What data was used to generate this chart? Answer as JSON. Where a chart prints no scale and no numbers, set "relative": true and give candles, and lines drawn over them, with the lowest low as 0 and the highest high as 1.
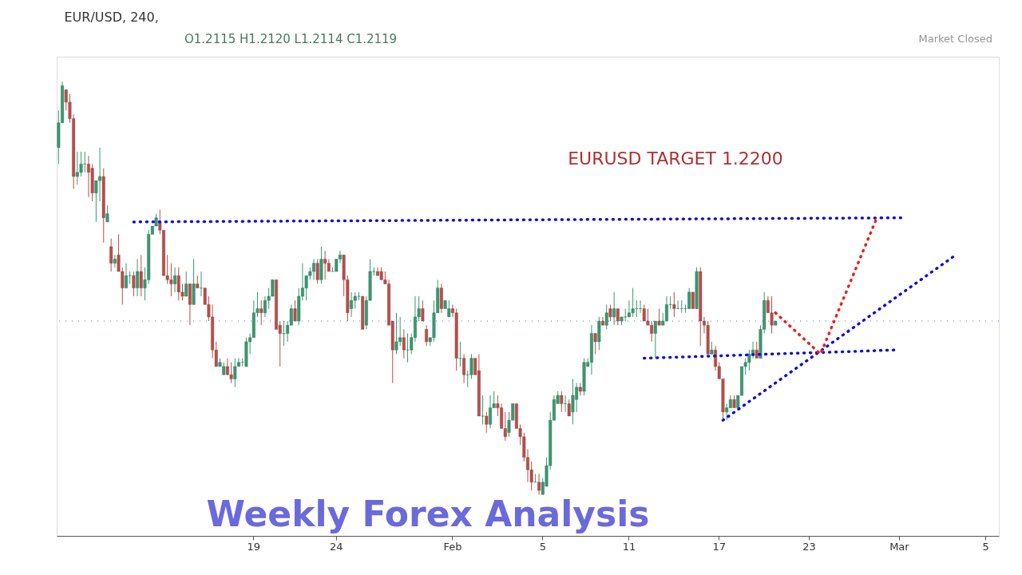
{
  "chart_data": {
    "type": "candlestick",
    "title": "EUR/USD, 240,",
    "relative": true,
    "line_style": "dotted",
    "categories": [
      null,
      null,
      null,
      null,
      null,
      null,
      null,
      null,
      null,
      null,
      null,
      null,
      null,
      null,
      null,
      null,
      null,
      null,
      null,
      null,
      null,
      null,
      null,
      null,
      null,
      null,
      null,
      null,
      null,
      null,
      null,
      null,
      null,
      null,
      null,
      null,
      null,
      null,
      null,
      null,
      null,
      null,
      null,
      null,
      null,
      null,
      null,
      null,
      null,
      null,
      null,
      null,
      "19",
      null,
      null,
      null,
      null,
      null,
      null,
      null,
      null,
      null,
      null,
      null,
      null,
      null,
      null,
      null,
      null,
      null,
      null,
      null,
      null,
      null,
      "24",
      null,
      null,
      null,
      null,
      null,
      null,
      null,
      null,
      null,
      null,
      null,
      null,
      null,
      null,
      null,
      null,
      null,
      null,
      null,
      null,
      null,
      null,
      null,
      null,
      null,
      null,
      null,
      null,
      null,
      null,
      "Feb",
      null,
      null,
      null,
      null,
      null,
      null,
      null,
      null,
      null,
      null,
      null,
      null,
      null,
      null,
      null,
      null,
      null,
      null,
      null,
      null,
      null,
      null,
      null,
      "5",
      null,
      null,
      null,
      null,
      null,
      null,
      null,
      null,
      null,
      null,
      null,
      null,
      null,
      null,
      null,
      null,
      null,
      null,
      null,
      null,
      null,
      null,
      "11",
      null,
      null,
      null,
      null,
      null,
      null,
      null,
      null,
      null,
      null,
      null,
      null,
      null,
      null,
      null,
      null,
      null,
      null,
      null,
      null,
      null,
      null,
      null,
      "17",
      null,
      null,
      null,
      null,
      null,
      null,
      null,
      null,
      null,
      null,
      null,
      null,
      null,
      null,
      null,
      null,
      null,
      null,
      null,
      null,
      null,
      null,
      null,
      "23",
      null,
      null,
      null,
      null,
      null,
      null,
      null,
      null,
      null,
      null,
      null,
      null,
      null,
      null,
      null,
      null,
      null,
      null,
      null,
      null,
      null,
      null,
      null,
      "Mar",
      null,
      null,
      null,
      null,
      null,
      null,
      null,
      null,
      null,
      null,
      null,
      null,
      null,
      null,
      null,
      null,
      null,
      null,
      null,
      null,
      null,
      null,
      "5",
      null,
      null,
      null
    ],
    "ohlc": [
      [
        0.84,
        0.93,
        0.8,
        0.9
      ],
      [
        0.9,
        1.0,
        0.9,
        0.99
      ],
      [
        0.98,
        0.98,
        0.93,
        0.95
      ],
      [
        0.95,
        0.97,
        0.9,
        0.91
      ],
      [
        0.91,
        0.92,
        0.74,
        0.77
      ],
      [
        0.77,
        0.83,
        0.75,
        0.78
      ],
      [
        0.78,
        0.83,
        0.77,
        0.8
      ],
      [
        0.8,
        0.83,
        0.78,
        0.8
      ],
      [
        0.8,
        0.82,
        0.72,
        0.78
      ],
      [
        0.79,
        0.8,
        0.71,
        0.73
      ],
      [
        0.73,
        0.76,
        0.66,
        0.76
      ],
      [
        0.76,
        0.84,
        0.71,
        0.77
      ],
      [
        0.77,
        0.79,
        0.61,
        0.67
      ],
      [
        0.66,
        0.7,
        0.66,
        0.68
      ],
      [
        0.6,
        0.62,
        0.54,
        0.56
      ],
      [
        0.56,
        0.58,
        0.55,
        0.57
      ],
      [
        0.58,
        0.63,
        0.54,
        0.54
      ],
      [
        0.54,
        0.55,
        0.46,
        0.5
      ],
      [
        0.5,
        0.56,
        0.5,
        0.53
      ],
      [
        0.53,
        0.54,
        0.51,
        0.53
      ],
      [
        0.53,
        0.54,
        0.48,
        0.5
      ],
      [
        0.5,
        0.57,
        0.48,
        0.54
      ],
      [
        0.54,
        0.58,
        0.48,
        0.5
      ],
      [
        0.5,
        0.55,
        0.47,
        0.52
      ],
      [
        0.52,
        0.64,
        0.51,
        0.63
      ],
      [
        0.63,
        0.65,
        0.63,
        0.65
      ],
      [
        0.65,
        0.68,
        0.65,
        0.67
      ],
      [
        0.66,
        0.69,
        0.63,
        0.64
      ],
      [
        0.64,
        0.64,
        0.53,
        0.53
      ],
      [
        0.53,
        0.58,
        0.51,
        0.52
      ],
      [
        0.52,
        0.56,
        0.48,
        0.51
      ],
      [
        0.51,
        0.55,
        0.49,
        0.53
      ],
      [
        0.53,
        0.55,
        0.47,
        0.49
      ],
      [
        0.49,
        0.51,
        0.47,
        0.48
      ],
      [
        0.48,
        0.54,
        0.48,
        0.51
      ],
      [
        0.51,
        0.51,
        0.41,
        0.46
      ],
      [
        0.46,
        0.57,
        0.46,
        0.51
      ],
      [
        0.51,
        0.53,
        0.5,
        0.5
      ],
      [
        0.5,
        0.54,
        0.48,
        0.5
      ],
      [
        0.5,
        0.5,
        0.46,
        0.46
      ],
      [
        0.46,
        0.48,
        0.42,
        0.43
      ],
      [
        0.43,
        0.46,
        0.33,
        0.35
      ],
      [
        0.35,
        0.37,
        0.31,
        0.31
      ],
      [
        0.31,
        0.33,
        0.31,
        0.32
      ],
      [
        0.29,
        0.32,
        0.29,
        0.31
      ],
      [
        0.31,
        0.33,
        0.29,
        0.29
      ],
      [
        0.29,
        0.32,
        0.27,
        0.28
      ],
      [
        0.28,
        0.33,
        0.26,
        0.31
      ],
      [
        0.31,
        0.33,
        0.31,
        0.32
      ],
      [
        0.32,
        0.33,
        0.31,
        0.32
      ],
      [
        0.31,
        0.38,
        0.31,
        0.37
      ],
      [
        0.37,
        0.39,
        0.34,
        0.38
      ],
      [
        0.38,
        0.47,
        0.38,
        0.44
      ],
      [
        0.44,
        0.49,
        0.43,
        0.45
      ],
      [
        0.45,
        0.47,
        0.41,
        0.44
      ],
      [
        0.44,
        0.48,
        0.43,
        0.47
      ],
      [
        0.47,
        0.5,
        0.45,
        0.48
      ],
      [
        0.48,
        0.52,
        0.48,
        0.52
      ],
      [
        0.52,
        0.52,
        0.4,
        0.4
      ],
      [
        0.41,
        0.42,
        0.31,
        0.39
      ],
      [
        0.39,
        0.42,
        0.36,
        0.39
      ],
      [
        0.39,
        0.42,
        0.37,
        0.41
      ],
      [
        0.41,
        0.46,
        0.41,
        0.45
      ],
      [
        0.45,
        0.47,
        0.42,
        0.42
      ],
      [
        0.42,
        0.5,
        0.41,
        0.48
      ],
      [
        0.48,
        0.56,
        0.47,
        0.5
      ],
      [
        0.5,
        0.53,
        0.47,
        0.53
      ],
      [
        0.53,
        0.55,
        0.52,
        0.54
      ],
      [
        0.54,
        0.57,
        0.52,
        0.56
      ],
      [
        0.56,
        0.57,
        0.51,
        0.52
      ],
      [
        0.52,
        0.6,
        0.51,
        0.57
      ],
      [
        0.57,
        0.59,
        0.52,
        0.56
      ],
      [
        0.56,
        0.57,
        0.54,
        0.54
      ],
      [
        0.54,
        0.55,
        0.54,
        0.54
      ],
      [
        0.54,
        0.57,
        0.54,
        0.57
      ],
      [
        0.57,
        0.59,
        0.56,
        0.58
      ],
      [
        0.58,
        0.58,
        0.48,
        0.52
      ],
      [
        0.52,
        0.53,
        0.42,
        0.44
      ],
      [
        0.45,
        0.49,
        0.43,
        0.47
      ],
      [
        0.47,
        0.49,
        0.45,
        0.48
      ],
      [
        0.48,
        0.49,
        0.47,
        0.48
      ],
      [
        0.48,
        0.48,
        0.4,
        0.4
      ],
      [
        0.41,
        0.48,
        0.4,
        0.47
      ],
      [
        0.47,
        0.57,
        0.47,
        0.54
      ],
      [
        0.54,
        0.55,
        0.53,
        0.54
      ],
      [
        0.54,
        0.55,
        0.53,
        0.53
      ],
      [
        0.54,
        0.55,
        0.52,
        0.52
      ],
      [
        0.52,
        0.54,
        0.51,
        0.51
      ],
      [
        0.51,
        0.52,
        0.41,
        0.41
      ],
      [
        0.42,
        0.42,
        0.27,
        0.35
      ],
      [
        0.35,
        0.44,
        0.34,
        0.37
      ],
      [
        0.37,
        0.43,
        0.36,
        0.38
      ],
      [
        0.38,
        0.4,
        0.33,
        0.35
      ],
      [
        0.35,
        0.39,
        0.32,
        0.35
      ],
      [
        0.35,
        0.39,
        0.34,
        0.38
      ],
      [
        0.38,
        0.48,
        0.37,
        0.43
      ],
      [
        0.43,
        0.48,
        0.42,
        0.45
      ],
      [
        0.45,
        0.47,
        0.42,
        0.42
      ],
      [
        0.4,
        0.41,
        0.36,
        0.37
      ],
      [
        0.37,
        0.38,
        0.36,
        0.38
      ],
      [
        0.38,
        0.47,
        0.37,
        0.44
      ],
      [
        0.44,
        0.52,
        0.44,
        0.5
      ],
      [
        0.5,
        0.51,
        0.44,
        0.45
      ],
      [
        0.45,
        0.47,
        0.45,
        0.47
      ],
      [
        0.43,
        0.47,
        0.43,
        0.45
      ],
      [
        0.45,
        0.46,
        0.43,
        0.44
      ],
      [
        0.44,
        0.45,
        0.3,
        0.33
      ],
      [
        0.33,
        0.37,
        0.31,
        0.33
      ],
      [
        0.33,
        0.34,
        0.27,
        0.29
      ],
      [
        0.29,
        0.3,
        0.26,
        0.29
      ],
      [
        0.29,
        0.34,
        0.28,
        0.33
      ],
      [
        0.33,
        0.33,
        0.29,
        0.29
      ],
      [
        0.3,
        0.34,
        0.19,
        0.19
      ],
      [
        0.19,
        0.24,
        0.17,
        0.19
      ],
      [
        0.19,
        0.2,
        0.15,
        0.17
      ],
      [
        0.17,
        0.24,
        0.16,
        0.21
      ],
      [
        0.21,
        0.25,
        0.21,
        0.22
      ],
      [
        0.22,
        0.24,
        0.19,
        0.21
      ],
      [
        0.21,
        0.22,
        0.16,
        0.16
      ],
      [
        0.16,
        0.2,
        0.13,
        0.14
      ],
      [
        0.15,
        0.2,
        0.14,
        0.18
      ],
      [
        0.18,
        0.22,
        0.18,
        0.22
      ],
      [
        0.22,
        0.22,
        0.16,
        0.16
      ],
      [
        0.16,
        0.17,
        0.12,
        0.14
      ],
      [
        0.14,
        0.15,
        0.08,
        0.09
      ],
      [
        0.09,
        0.11,
        0.03,
        0.06
      ],
      [
        0.06,
        0.08,
        0.01,
        0.03
      ],
      [
        0.03,
        0.05,
        0.03,
        0.03
      ],
      [
        0.03,
        0.05,
        0,
        0.01
      ],
      [
        0,
        0.04,
        0,
        0.03
      ],
      [
        0.02,
        0.09,
        0.02,
        0.07
      ],
      [
        0.07,
        0.2,
        0.06,
        0.18
      ],
      [
        0.18,
        0.24,
        0.18,
        0.23
      ],
      [
        0.22,
        0.25,
        0.22,
        0.24
      ],
      [
        0.24,
        0.25,
        0.2,
        0.22
      ],
      [
        0.22,
        0.24,
        0.2,
        0.22
      ],
      [
        0.22,
        0.23,
        0.19,
        0.19
      ],
      [
        0.2,
        0.28,
        0.17,
        0.24
      ],
      [
        0.23,
        0.27,
        0.2,
        0.26
      ],
      [
        0.26,
        0.27,
        0.24,
        0.25
      ],
      [
        0.25,
        0.33,
        0.24,
        0.32
      ],
      [
        0.31,
        0.33,
        0.31,
        0.32
      ],
      [
        0.32,
        0.41,
        0.29,
        0.39
      ],
      [
        0.39,
        0.39,
        0.34,
        0.37
      ],
      [
        0.37,
        0.43,
        0.35,
        0.42
      ],
      [
        0.42,
        0.43,
        0.41,
        0.41
      ],
      [
        0.41,
        0.46,
        0.4,
        0.44
      ],
      [
        0.45,
        0.46,
        0.42,
        0.43
      ],
      [
        0.43,
        0.49,
        0.41,
        0.45
      ],
      [
        0.45,
        0.45,
        0.41,
        0.42
      ],
      [
        0.42,
        0.43,
        0.41,
        0.43
      ],
      [
        0.43,
        0.45,
        0.42,
        0.43
      ],
      [
        0.43,
        0.47,
        0.43,
        0.44
      ],
      [
        0.44,
        0.5,
        0.43,
        0.45
      ],
      [
        0.45,
        0.47,
        0.43,
        0.45
      ],
      [
        0.45,
        0.47,
        0.44,
        0.45
      ],
      [
        0.45,
        0.46,
        0.42,
        0.42
      ],
      [
        0.42,
        0.45,
        0.41,
        0.41
      ],
      [
        0.41,
        0.42,
        0.37,
        0.39
      ],
      [
        0.39,
        0.42,
        0.33,
        0.42
      ],
      [
        0.42,
        0.45,
        0.41,
        0.41
      ],
      [
        0.41,
        0.44,
        0.41,
        0.42
      ],
      [
        0.42,
        0.48,
        0.42,
        0.46
      ],
      [
        0.46,
        0.48,
        0.45,
        0.46
      ],
      [
        0.46,
        0.49,
        0.43,
        0.45
      ],
      [
        0.45,
        0.47,
        0.45,
        0.45
      ],
      [
        0.45,
        0.47,
        0.44,
        0.45
      ],
      [
        0.45,
        0.46,
        0.44,
        0.45
      ],
      [
        0.45,
        0.5,
        0.45,
        0.49
      ],
      [
        0.49,
        0.49,
        0.45,
        0.45
      ],
      [
        0.45,
        0.55,
        0.45,
        0.54
      ],
      [
        0.54,
        0.55,
        0.36,
        0.42
      ],
      [
        0.42,
        0.43,
        0.39,
        0.41
      ],
      [
        0.41,
        0.42,
        0.34,
        0.34
      ],
      [
        0.34,
        0.37,
        0.34,
        0.35
      ],
      [
        0.35,
        0.36,
        0.3,
        0.31
      ],
      [
        0.31,
        0.32,
        0.28,
        0.28
      ],
      [
        0.28,
        0.28,
        0.18,
        0.2
      ],
      [
        0.2,
        0.22,
        0.18,
        0.21
      ],
      [
        0.21,
        0.24,
        0.21,
        0.23
      ],
      [
        0.23,
        0.24,
        0.21,
        0.21
      ],
      [
        0.21,
        0.24,
        0.21,
        0.24
      ],
      [
        0.24,
        0.31,
        0.24,
        0.31
      ],
      [
        0.31,
        0.33,
        0.29,
        0.32
      ],
      [
        0.32,
        0.35,
        0.3,
        0.34
      ],
      [
        0.34,
        0.37,
        0.33,
        0.35
      ],
      [
        0.35,
        0.37,
        0.33,
        0.33
      ],
      [
        0.33,
        0.41,
        0.33,
        0.4
      ],
      [
        0.4,
        0.49,
        0.39,
        0.47
      ],
      [
        0.47,
        0.48,
        0.44,
        0.44
      ],
      [
        0.44,
        0.48,
        0.39,
        0.41
      ],
      [
        0.41,
        0.42,
        0.41,
        0.42
      ],
      null,
      null,
      null,
      null,
      null,
      null,
      null,
      null,
      null,
      null,
      null,
      null,
      null,
      null,
      null,
      null,
      null,
      null,
      null,
      null,
      null,
      null,
      null,
      null,
      null,
      null,
      null,
      null,
      null,
      null,
      null,
      null,
      null,
      null,
      null,
      null,
      null,
      null,
      null,
      null,
      null,
      null,
      null,
      null,
      null,
      null,
      null,
      null,
      null,
      null,
      null,
      null,
      null,
      null,
      null,
      null,
      null,
      null,
      null
    ],
    "series": [
      {
        "type": "line",
        "color": "#1010d8",
        "values": [
          null,
          null,
          null,
          null,
          null,
          null,
          null,
          null,
          null,
          null,
          null,
          null,
          null,
          null,
          null,
          null,
          null,
          null,
          null,
          null,
          0.66,
          null,
          null,
          null,
          null,
          null,
          null,
          null,
          null,
          null,
          null,
          null,
          null,
          null,
          null,
          null,
          null,
          null,
          null,
          null,
          null,
          null,
          null,
          null,
          null,
          null,
          null,
          null,
          null,
          null,
          null,
          null,
          null,
          null,
          null,
          null,
          null,
          null,
          null,
          null,
          null,
          null,
          null,
          null,
          null,
          null,
          null,
          null,
          null,
          null,
          null,
          null,
          null,
          null,
          null,
          null,
          null,
          null,
          null,
          null,
          null,
          null,
          null,
          null,
          null,
          null,
          null,
          null,
          null,
          null,
          null,
          null,
          null,
          null,
          null,
          null,
          null,
          null,
          null,
          null,
          null,
          null,
          null,
          null,
          null,
          null,
          null,
          null,
          null,
          null,
          null,
          null,
          null,
          null,
          null,
          null,
          null,
          null,
          null,
          null,
          null,
          null,
          null,
          null,
          null,
          null,
          null,
          null,
          null,
          null,
          null,
          null,
          null,
          null,
          null,
          null,
          null,
          null,
          null,
          null,
          null,
          null,
          null,
          null,
          null,
          null,
          null,
          null,
          null,
          null,
          null,
          null,
          null,
          null,
          null,
          null,
          null,
          null,
          null,
          null,
          null,
          null,
          null,
          null,
          null,
          null,
          null,
          null,
          null,
          null,
          null,
          null,
          null,
          null,
          null,
          null,
          null,
          null,
          null,
          null,
          null,
          null,
          null,
          null,
          null,
          null,
          null,
          null,
          null,
          null,
          null,
          null,
          null,
          null,
          null,
          null,
          null,
          null,
          null,
          null,
          null,
          null,
          null,
          null,
          null,
          null,
          null,
          null,
          null,
          null,
          null,
          null,
          null,
          null,
          null,
          null,
          null,
          null,
          null,
          null,
          null,
          null,
          null,
          null,
          null,
          0.67,
          null,
          null,
          null,
          null,
          null,
          null,
          null,
          null,
          null,
          null,
          null,
          null,
          null,
          null,
          null,
          null,
          null,
          null,
          null,
          null,
          null,
          null,
          null,
          null,
          null
        ]
      },
      {
        "type": "line",
        "color": "#1010d8",
        "values": [
          null,
          null,
          null,
          null,
          null,
          null,
          null,
          null,
          null,
          null,
          null,
          null,
          null,
          null,
          null,
          null,
          null,
          null,
          null,
          null,
          null,
          null,
          null,
          null,
          null,
          null,
          null,
          null,
          null,
          null,
          null,
          null,
          null,
          null,
          null,
          null,
          null,
          null,
          null,
          null,
          null,
          null,
          null,
          null,
          null,
          null,
          null,
          null,
          null,
          null,
          null,
          null,
          null,
          null,
          null,
          null,
          null,
          null,
          null,
          null,
          null,
          null,
          null,
          null,
          null,
          null,
          null,
          null,
          null,
          null,
          null,
          null,
          null,
          null,
          null,
          null,
          null,
          null,
          null,
          null,
          null,
          null,
          null,
          null,
          null,
          null,
          null,
          null,
          null,
          null,
          null,
          null,
          null,
          null,
          null,
          null,
          null,
          null,
          null,
          null,
          null,
          null,
          null,
          null,
          null,
          null,
          null,
          null,
          null,
          null,
          null,
          null,
          null,
          null,
          null,
          null,
          null,
          null,
          null,
          null,
          null,
          null,
          null,
          null,
          null,
          null,
          null,
          null,
          null,
          null,
          null,
          null,
          null,
          null,
          null,
          null,
          null,
          null,
          null,
          null,
          null,
          null,
          null,
          null,
          null,
          null,
          null,
          null,
          null,
          null,
          null,
          null,
          null,
          null,
          null,
          null,
          0.33,
          null,
          null,
          null,
          null,
          null,
          null,
          null,
          null,
          null,
          null,
          null,
          null,
          null,
          null,
          null,
          null,
          null,
          null,
          null,
          null,
          null,
          null,
          null,
          null,
          null,
          null,
          null,
          null,
          null,
          null,
          null,
          null,
          null,
          null,
          null,
          null,
          null,
          null,
          null,
          null,
          null,
          null,
          null,
          null,
          null,
          null,
          null,
          null,
          null,
          null,
          null,
          null,
          null,
          null,
          null,
          null,
          null,
          null,
          null,
          null,
          null,
          null,
          null,
          null,
          null,
          null,
          0.35,
          null,
          null,
          null,
          null,
          null,
          null,
          null,
          null,
          null,
          null,
          null,
          null,
          null,
          null,
          null,
          null,
          null,
          null,
          null,
          null,
          null,
          null,
          null,
          null,
          null,
          null,
          null
        ]
      },
      {
        "type": "line",
        "color": "#1010d8",
        "values": [
          null,
          null,
          null,
          null,
          null,
          null,
          null,
          null,
          null,
          null,
          null,
          null,
          null,
          null,
          null,
          null,
          null,
          null,
          null,
          null,
          null,
          null,
          null,
          null,
          null,
          null,
          null,
          null,
          null,
          null,
          null,
          null,
          null,
          null,
          null,
          null,
          null,
          null,
          null,
          null,
          null,
          null,
          null,
          null,
          null,
          null,
          null,
          null,
          null,
          null,
          null,
          null,
          null,
          null,
          null,
          null,
          null,
          null,
          null,
          null,
          null,
          null,
          null,
          null,
          null,
          null,
          null,
          null,
          null,
          null,
          null,
          null,
          null,
          null,
          null,
          null,
          null,
          null,
          null,
          null,
          null,
          null,
          null,
          null,
          null,
          null,
          null,
          null,
          null,
          null,
          null,
          null,
          null,
          null,
          null,
          null,
          null,
          null,
          null,
          null,
          null,
          null,
          null,
          null,
          null,
          null,
          null,
          null,
          null,
          null,
          null,
          null,
          null,
          null,
          null,
          null,
          null,
          null,
          null,
          null,
          null,
          null,
          null,
          null,
          null,
          null,
          null,
          null,
          null,
          null,
          null,
          null,
          null,
          null,
          null,
          null,
          null,
          null,
          null,
          null,
          null,
          null,
          null,
          null,
          null,
          null,
          null,
          null,
          null,
          null,
          null,
          null,
          null,
          null,
          null,
          null,
          null,
          null,
          null,
          null,
          null,
          null,
          null,
          null,
          null,
          null,
          null,
          null,
          null,
          null,
          null,
          null,
          null,
          null,
          null,
          null,
          null,
          0.18,
          null,
          null,
          null,
          null,
          null,
          null,
          null,
          null,
          null,
          null,
          null,
          null,
          null,
          null,
          null,
          null,
          null,
          null,
          null,
          null,
          null,
          null,
          null,
          null,
          null,
          null,
          null,
          null,
          null,
          null,
          null,
          null,
          null,
          null,
          null,
          null,
          null,
          null,
          null,
          null,
          null,
          null,
          null,
          null,
          null,
          null,
          null,
          null,
          null,
          null,
          null,
          null,
          null,
          null,
          null,
          null,
          null,
          null,
          null,
          null,
          null,
          0.58,
          null,
          null,
          null,
          null,
          null,
          null,
          null,
          null,
          null,
          null,
          null
        ]
      },
      {
        "type": "line",
        "color": "#e8201c",
        "values": [
          null,
          null,
          null,
          null,
          null,
          null,
          null,
          null,
          null,
          null,
          null,
          null,
          null,
          null,
          null,
          null,
          null,
          null,
          null,
          null,
          null,
          null,
          null,
          null,
          null,
          null,
          null,
          null,
          null,
          null,
          null,
          null,
          null,
          null,
          null,
          null,
          null,
          null,
          null,
          null,
          null,
          null,
          null,
          null,
          null,
          null,
          null,
          null,
          null,
          null,
          null,
          null,
          null,
          null,
          null,
          null,
          null,
          null,
          null,
          null,
          null,
          null,
          null,
          null,
          null,
          null,
          null,
          null,
          null,
          null,
          null,
          null,
          null,
          null,
          null,
          null,
          null,
          null,
          null,
          null,
          null,
          null,
          null,
          null,
          null,
          null,
          null,
          null,
          null,
          null,
          null,
          null,
          null,
          null,
          null,
          null,
          null,
          null,
          null,
          null,
          null,
          null,
          null,
          null,
          null,
          null,
          null,
          null,
          null,
          null,
          null,
          null,
          null,
          null,
          null,
          null,
          null,
          null,
          null,
          null,
          null,
          null,
          null,
          null,
          null,
          null,
          null,
          null,
          null,
          null,
          null,
          null,
          null,
          null,
          null,
          null,
          null,
          null,
          null,
          null,
          null,
          null,
          null,
          null,
          null,
          null,
          null,
          null,
          null,
          null,
          null,
          null,
          null,
          null,
          null,
          null,
          null,
          null,
          null,
          null,
          null,
          null,
          null,
          null,
          null,
          null,
          null,
          null,
          null,
          null,
          null,
          null,
          null,
          null,
          null,
          null,
          null,
          null,
          null,
          null,
          null,
          null,
          null,
          null,
          null,
          null,
          null,
          null,
          null,
          null,
          null,
          0.44,
          null,
          null,
          null,
          null,
          null,
          null,
          null,
          null,
          null,
          null,
          null,
          0.34,
          null,
          null,
          null,
          null,
          null,
          null,
          null,
          null,
          null,
          null,
          null,
          null,
          null,
          null,
          0.67,
          null,
          null,
          null,
          null,
          null,
          null,
          null,
          null,
          null,
          null,
          null,
          null,
          null,
          null,
          null,
          null,
          null,
          null,
          null,
          null,
          null,
          null,
          null,
          null,
          null,
          null,
          null,
          null,
          null,
          null,
          null,
          null
        ]
      }
    ],
    "ref_lines": [
      {
        "axis": "y",
        "value": 0.42,
        "color": "#4a6fe3",
        "line_style": "dotted"
      }
    ],
    "annotations": [
      "O1.2115 H1.2120 L1.2114 C1.2119",
      "Market Closed",
      "EURUSD TARGET 1.2200",
      "Weekly Forex Analysis"
    ]
  }
}
